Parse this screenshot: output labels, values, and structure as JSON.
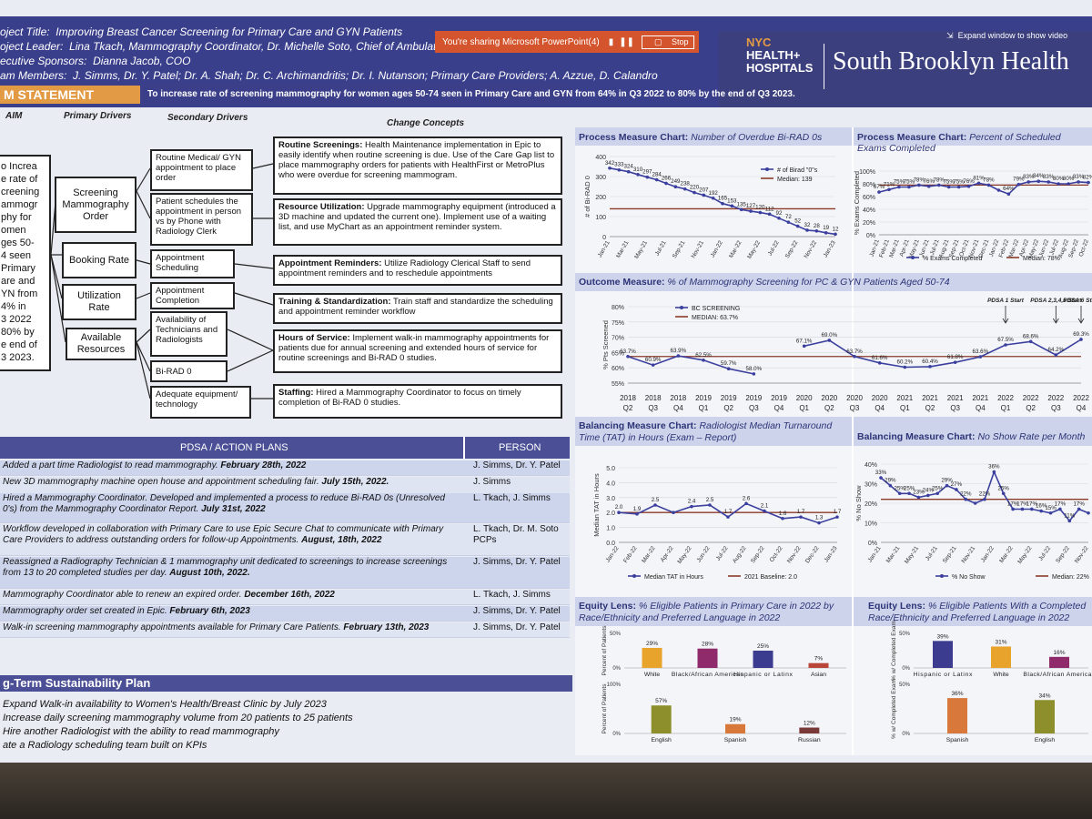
{
  "header": {
    "project_title_label": "oject Title:",
    "project_title": "Improving Breast Cancer Screening for Primary Care and GYN Patients",
    "leader_label": "oject Leader:",
    "leader": "Lina Tkach, Mammography Coordinator, Dr. Michelle Soto, Chief of Ambulatory Care",
    "sponsor_label": "ecutive Sponsors:",
    "sponsor": "Dianna Jacob, COO",
    "members_label": "am Members:",
    "members": "J. Simms, Dr. Y. Patel; Dr. A. Shah; Dr. C. Archimandritis; Dr. I. Nutanson; Primary Care Providers; A. Azzue, D. Calandro"
  },
  "sharing_bar": {
    "text": "You're sharing Microsoft PowerPoint(4)",
    "stop": "Stop",
    "expand": "Expand window to show video"
  },
  "brand": {
    "logo_line1": "NYC",
    "logo_line2": "HEALTH+",
    "logo_line3": "HOSPITALS",
    "name": "South Brooklyn Health"
  },
  "problem": {
    "title": "M STATEMENT",
    "text": "To increase rate of screening mammography for women ages 50-74 seen in Primary Care and GYN from 64% in Q3 2022 to 80% by the end of Q3 2023."
  },
  "driver": {
    "col_aim": "AIM",
    "col_primary": "Primary Drivers",
    "col_secondary": "Secondary Drivers",
    "col_change": "Change Concepts",
    "aim_lines": [
      "o Increa",
      "e rate of",
      "creening",
      "ammogr",
      "phy for",
      "omen",
      "ges 50-",
      "4 seen",
      "Primary",
      "are and",
      "YN from",
      "4% in",
      "3 2022",
      "80% by",
      "e end of",
      "3 2023."
    ],
    "primary": [
      "Screening Mammography Order",
      "Booking Rate",
      "Utilization Rate",
      "Available Resources"
    ],
    "secondary": [
      "Routine Medical/ GYN appointment to place order",
      "Patient schedules the appointment in person vs by Phone with Radiology Clerk",
      "Appointment Scheduling",
      "Appointment Completion",
      "Availability of Technicians and Radiologists",
      "Bi-RAD 0",
      "Adequate equipment/ technology"
    ],
    "changes": [
      {
        "title": "Routine Screenings:",
        "text": "Health Maintenance implementation in Epic to easily identify when routine screening is due. Use of the Care Gap list to place mammography orders for patients with HealthFirst or MetroPlus who were overdue for screening mammogram."
      },
      {
        "title": "Resource Utilization:",
        "text": "Upgrade mammography equipment (introduced a 3D machine and updated the current one). Implement use of a waiting list, and use MyChart as an appointment reminder system."
      },
      {
        "title": "Appointment Reminders:",
        "text": "Utilize Radiology Clerical Staff to send appointment reminders and to reschedule appointments"
      },
      {
        "title": "Training & Standardization:",
        "text": "Train staff and standardize the scheduling and appointment reminder workflow"
      },
      {
        "title": "Hours of Service:",
        "text": "Implement walk-in mammography appointments for patients due for annual screening and extended hours of service for routine screenings and Bi-RAD 0 studies."
      },
      {
        "title": "Staffing:",
        "text": "Hired a Mammography Coordinator to focus on timely completion of Bi-RAD 0 studies."
      }
    ]
  },
  "pdsa": {
    "col_action": "PDSA / ACTION PLANS",
    "col_person": "PERSON",
    "rows": [
      {
        "text": "Added a part time Radiologist to read mammography.",
        "date": "February 28th, 2022",
        "person": "J. Simms, Dr. Y. Patel"
      },
      {
        "text": "New 3D mammography machine open house and appointment scheduling fair.",
        "date": "July 15th, 2022.",
        "person": "J. Simms"
      },
      {
        "text": "Hired a Mammography Coordinator. Developed and implemented a process to reduce Bi-RAD 0s (Unresolved 0's) from the Mammography Coordinator Report.",
        "date": "July 31st, 2022",
        "person": "L. Tkach, J. Simms"
      },
      {
        "text": "Workflow developed in collaboration with Primary Care to use Epic Secure Chat to communicate with Primary Care Providers to address outstanding orders for follow-up Appointments.",
        "date": "August, 18th, 2022",
        "person": "L. Tkach, Dr. M. Soto PCPs"
      },
      {
        "text": "Reassigned a Radiography Technician & 1 mammography unit dedicated to screenings to increase screenings from 13 to 20 completed studies per day.",
        "date": "August 10th, 2022.",
        "person": "J. Simms, Dr. Y. Patel"
      },
      {
        "text": "Mammography Coordinator able to renew an expired order.",
        "date": "December 16th, 2022",
        "person": "L. Tkach, J. Simms"
      },
      {
        "text": "Mammography order set created in Epic.",
        "date": "February 6th, 2023",
        "person": "J. Simms, Dr. Y. Patel"
      },
      {
        "text": "Walk-in screening mammography appointments available for Primary Care Patients.",
        "date": "February 13th, 2023",
        "person": "J. Simms, Dr. Y. Patel"
      }
    ]
  },
  "sustainability": {
    "title": "g-Term Sustainability Plan",
    "items": [
      "Expand Walk-in availability to Women's Health/Breast Clinic by July 2023",
      "Increase daily screening mammography volume from 20 patients to 25 patients",
      "Hire another Radiologist with the ability to read mammography",
      "ate a Radiology scheduling team built on KPIs"
    ]
  },
  "colors": {
    "navy": "#3a3f8c",
    "orange": "#e39a44",
    "series": "#3b3f9e",
    "median": "#8b3a2a"
  },
  "chart_data": [
    {
      "id": "overdue-birad",
      "type": "line",
      "title_bold": "Process Measure Chart:",
      "title_rest": "Number of Overdue Bi-RAD 0s",
      "categories": [
        "Jan-21",
        "Feb-21",
        "Mar-21",
        "Apr-21",
        "May-21",
        "Jun-21",
        "Jul-21",
        "Aug-21",
        "Sep-21",
        "Oct-21",
        "Nov-21",
        "Dec-21",
        "Jan-22",
        "Feb-22",
        "Mar-22",
        "Apr-22",
        "May-22",
        "Jun-22",
        "Jul-22",
        "Aug-22",
        "Sep-22",
        "Oct-22",
        "Nov-22",
        "Dec-22",
        "Jan-23"
      ],
      "xtick_labels": [
        "Jan-21",
        "Mar-21",
        "May-21",
        "Jul-21",
        "Sep-21",
        "Nov-21",
        "Jan-22",
        "Mar-22",
        "May-22",
        "Jul-22",
        "Sep-22",
        "Nov-22",
        "Jan-23"
      ],
      "values": [
        342,
        333,
        324,
        310,
        297,
        284,
        266,
        249,
        238,
        220,
        207,
        192,
        165,
        153,
        135,
        127,
        120,
        112,
        92,
        72,
        52,
        32,
        28,
        19,
        12
      ],
      "value_labels": [
        "342",
        "333",
        "324",
        "310",
        "297",
        "284",
        "266",
        "249",
        "238",
        "220",
        "207",
        "192",
        "165",
        "153",
        "135",
        "127",
        "120",
        "112",
        "92",
        "72",
        "52",
        "32",
        "28",
        "19",
        "12"
      ],
      "median": 139,
      "ylabel": "# of Bi-RAD 0",
      "yticks": [
        0,
        100,
        200,
        300,
        400
      ],
      "ylim": [
        0,
        400
      ],
      "legend": [
        "# of Birad \"0\"s",
        "Median: 139"
      ]
    },
    {
      "id": "exams-completed",
      "type": "line",
      "title_bold": "Process Measure Chart:",
      "title_rest": "Percent of Scheduled Exams Completed",
      "categories": [
        "Jan-21",
        "Feb-21",
        "Mar-21",
        "Apr-21",
        "May-21",
        "Jun-21",
        "Jul-21",
        "Aug-21",
        "Sep-21",
        "Oct-21",
        "Nov-21",
        "Dec-21",
        "Jan-22",
        "Feb-22",
        "Mar-22",
        "Apr-22",
        "May-22",
        "Jun-22",
        "Jul-22",
        "Aug-22",
        "Sep-22",
        "Oct-22"
      ],
      "values": [
        67,
        71,
        75,
        75,
        78,
        76,
        78,
        75,
        75,
        76,
        81,
        78,
        70,
        64,
        79,
        83,
        84,
        83,
        80,
        80,
        83,
        82
      ],
      "value_labels": [
        "67%",
        "71%",
        "75%",
        "75%",
        "78%",
        "76%",
        "78%",
        "75%",
        "75%",
        "76%",
        "81%",
        "78%",
        "",
        "64%",
        "79%",
        "83%",
        "84%",
        "83%",
        "80%",
        "80%",
        "83%",
        "82%"
      ],
      "median": 78,
      "ylabel": "% Exams Completed",
      "yticks": [
        0,
        20,
        40,
        60,
        80,
        100
      ],
      "ytick_labels": [
        "0%",
        "20%",
        "40%",
        "60%",
        "80%",
        "100%"
      ],
      "ylim": [
        0,
        100
      ],
      "legend": [
        "% Exams Completed",
        "Median: 78%"
      ]
    },
    {
      "id": "outcome",
      "type": "line",
      "title_bold": "Outcome Measure:",
      "title_rest": "% of Mammography Screening for PC & GYN Patients Aged 50-74",
      "categories": [
        "2018 Q2",
        "2018 Q3",
        "2018 Q4",
        "2019 Q1",
        "2019 Q2",
        "2019 Q3",
        "2019 Q4",
        "2020 Q1",
        "2020 Q2",
        "2020 Q3",
        "2020 Q4",
        "2021 Q1",
        "2021 Q2",
        "2021 Q3",
        "2021 Q4",
        "2022 Q1",
        "2022 Q2",
        "2022 Q3",
        "2022 Q4"
      ],
      "values": [
        63.7,
        60.9,
        63.9,
        62.5,
        59.7,
        58.0,
        null,
        67.1,
        69.0,
        63.7,
        61.6,
        60.2,
        60.4,
        61.8,
        63.6,
        67.5,
        68.6,
        64.2,
        69.3
      ],
      "value_labels": [
        "63.7%",
        "60.9%",
        "63.9%",
        "62.5%",
        "59.7%",
        "58.0%",
        "",
        "67.1%",
        "69.0%",
        "63.7%",
        "61.6%",
        "60.2%",
        "60.4%",
        "61.8%",
        "63.6%",
        "67.5%",
        "68.6%",
        "64.2%",
        "69.3%"
      ],
      "median": 63.7,
      "ylabel": "% Pts Screened",
      "yticks": [
        55,
        60,
        65,
        70,
        75,
        80
      ],
      "ytick_labels": [
        "55%",
        "60%",
        "65%",
        "70%",
        "75%",
        "80%"
      ],
      "ylim": [
        55,
        80
      ],
      "legend": [
        "BC SCREENING",
        "MEDIAN: 63.7%"
      ],
      "annotations": [
        {
          "label": "PDSA 1 Start",
          "at": "2022 Q1"
        },
        {
          "label": "PDSA 2,3,4,5 Start",
          "at": "2022 Q3"
        },
        {
          "label": "PDSA 6 Start",
          "at": "2022 Q4"
        }
      ]
    },
    {
      "id": "tat",
      "type": "line",
      "title_bold": "Balancing Measure Chart:",
      "title_rest": "Radiologist Median Turnaround Time (TAT) in Hours (Exam – Report)",
      "categories": [
        "Jan-22",
        "Feb-22",
        "Mar-22",
        "Apr-22",
        "May-22",
        "Jun-22",
        "Jul-22",
        "Aug-22",
        "Sep-22",
        "Oct-22",
        "Nov-22",
        "Dec-22",
        "Jan-23"
      ],
      "values": [
        2.0,
        1.9,
        2.5,
        2.0,
        2.4,
        2.5,
        1.7,
        2.6,
        2.1,
        1.6,
        1.7,
        1.3,
        1.7
      ],
      "value_labels": [
        "2.0",
        "1.9",
        "2.5",
        "",
        "2.4",
        "2.5",
        "1.7",
        "2.6",
        "2.1",
        "1.6",
        "1.7",
        "1.3",
        "1.7"
      ],
      "median": 2.0,
      "ylabel": "Median TAT in Hours",
      "yticks": [
        0,
        1,
        2,
        3,
        4,
        5
      ],
      "ytick_labels": [
        "0.0",
        "1.0",
        "2.0",
        "3.0",
        "4.0",
        "5.0"
      ],
      "ylim": [
        0,
        5
      ],
      "legend": [
        "Median TAT in Hours",
        "2021 Baseline: 2.0"
      ]
    },
    {
      "id": "noshow",
      "type": "line",
      "title_bold": "Balancing Measure Chart:",
      "title_rest": "No Show Rate per Month",
      "categories": [
        "Jan-21",
        "Feb-21",
        "Mar-21",
        "Apr-21",
        "May-21",
        "Jun-21",
        "Jul-21",
        "Aug-21",
        "Sep-21",
        "Oct-21",
        "Nov-21",
        "Dec-21",
        "Jan-22",
        "Feb-22",
        "Mar-22",
        "Apr-22",
        "May-22",
        "Jun-22",
        "Jul-22",
        "Aug-22",
        "Sep-22",
        "Oct-22",
        "Nov-22"
      ],
      "xtick_labels": [
        "Jan-21",
        "Mar-21",
        "May-21",
        "Jul-21",
        "Sep-21",
        "Nov-21",
        "Jan-22",
        "Mar-22",
        "May-22",
        "Jul-22",
        "Sep-22",
        "Nov-22"
      ],
      "values": [
        33,
        29,
        25,
        25,
        23,
        24,
        25,
        29,
        27,
        22,
        20,
        22,
        36,
        25,
        17,
        17,
        17,
        16,
        15,
        17,
        11,
        17,
        15
      ],
      "value_labels": [
        "33%",
        "29%",
        "25%",
        "25%",
        "23%",
        "24%",
        "25%",
        "29%",
        "27%",
        "22%",
        "",
        "22%",
        "36%",
        "25%",
        "17%",
        "17%",
        "17%",
        "16%",
        "15%",
        "17%",
        "11%",
        "17%",
        ""
      ],
      "median": 22,
      "ylabel": "% No Show",
      "yticks": [
        0,
        10,
        20,
        30,
        40
      ],
      "ytick_labels": [
        "0%",
        "10%",
        "20%",
        "30%",
        "40%"
      ],
      "ylim": [
        0,
        40
      ],
      "legend": [
        "% No Show",
        "Median: 22%"
      ]
    },
    {
      "id": "equity-pc",
      "type": "bar",
      "title_bold": "Equity Lens:",
      "title_rest": "% Eligible Patients in Primary Care in 2022 by Race/Ethnicity and Preferred Language in 2022",
      "groups": [
        {
          "ylabel": "Percent of Patients",
          "ytick_labels": [
            "0%",
            "50%"
          ],
          "ymax": 50,
          "categories": [
            "White",
            "Black/African American",
            "Hispanic or Latinx",
            "Asian"
          ],
          "values": [
            29,
            28,
            25,
            7
          ],
          "value_labels": [
            "29%",
            "28%",
            "25%",
            "7%"
          ],
          "colors": [
            "#e8a32c",
            "#8f2b6b",
            "#3b3c8f",
            "#b8473a"
          ]
        },
        {
          "ylabel": "Percent of Patients",
          "ytick_labels": [
            "0%",
            "100%"
          ],
          "ymax": 100,
          "categories": [
            "English",
            "Spanish",
            "Russian"
          ],
          "values": [
            57,
            19,
            12
          ],
          "value_labels": [
            "57%",
            "19%",
            "12%"
          ],
          "colors": [
            "#8c8f2b",
            "#d8783b",
            "#7a3a3a"
          ]
        }
      ]
    },
    {
      "id": "equity-completed",
      "type": "bar",
      "title_bold": "Equity Lens:",
      "title_rest": "% Eligible Patients With a Completed Race/Ethnicity and Preferred Language in 2022",
      "groups": [
        {
          "ylabel": "% w/ Completed Exam",
          "ytick_labels": [
            "0%",
            "50%"
          ],
          "ymax": 50,
          "categories": [
            "Hispanic or Latinx",
            "White",
            "Black/African American"
          ],
          "values": [
            39,
            31,
            16
          ],
          "value_labels": [
            "39%",
            "31%",
            "16%"
          ],
          "colors": [
            "#3b3c8f",
            "#e8a32c",
            "#8f2b6b"
          ]
        },
        {
          "ylabel": "% w/ Completed Exam",
          "ytick_labels": [
            "0%",
            "50%"
          ],
          "ymax": 50,
          "categories": [
            "Spanish",
            "English"
          ],
          "values": [
            36,
            34
          ],
          "value_labels": [
            "36%",
            "34%"
          ],
          "colors": [
            "#d8783b",
            "#8c8f2b"
          ]
        }
      ]
    }
  ]
}
